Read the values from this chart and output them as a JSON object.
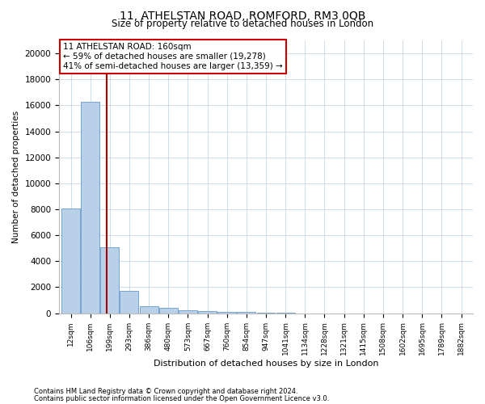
{
  "title": "11, ATHELSTAN ROAD, ROMFORD, RM3 0QB",
  "subtitle": "Size of property relative to detached houses in London",
  "xlabel": "Distribution of detached houses by size in London",
  "ylabel": "Number of detached properties",
  "bar_color": "#b8d0e8",
  "bar_edge_color": "#6699cc",
  "property_line_color": "#aa0000",
  "annotation_text": "11 ATHELSTAN ROAD: 160sqm\n← 59% of detached houses are smaller (19,278)\n41% of semi-detached houses are larger (13,359) →",
  "annotation_box_color": "#ffffff",
  "annotation_border_color": "#cc0000",
  "categories": [
    "12sqm",
    "106sqm",
    "199sqm",
    "293sqm",
    "386sqm",
    "480sqm",
    "573sqm",
    "667sqm",
    "760sqm",
    "854sqm",
    "947sqm",
    "1041sqm",
    "1134sqm",
    "1228sqm",
    "1321sqm",
    "1415sqm",
    "1508sqm",
    "1602sqm",
    "1695sqm",
    "1789sqm",
    "1882sqm"
  ],
  "values": [
    8050,
    16300,
    5100,
    1700,
    550,
    380,
    200,
    170,
    130,
    80,
    30,
    10,
    5,
    3,
    2,
    1,
    1,
    1,
    1,
    1,
    1
  ],
  "ylim": [
    0,
    21000
  ],
  "yticks": [
    0,
    2000,
    4000,
    6000,
    8000,
    10000,
    12000,
    14000,
    16000,
    18000,
    20000
  ],
  "property_line_x": 1.85,
  "footer_line1": "Contains HM Land Registry data © Crown copyright and database right 2024.",
  "footer_line2": "Contains public sector information licensed under the Open Government Licence v3.0.",
  "background_color": "#ffffff",
  "grid_color": "#c8d8e8",
  "figwidth": 6.0,
  "figheight": 5.0,
  "dpi": 100
}
